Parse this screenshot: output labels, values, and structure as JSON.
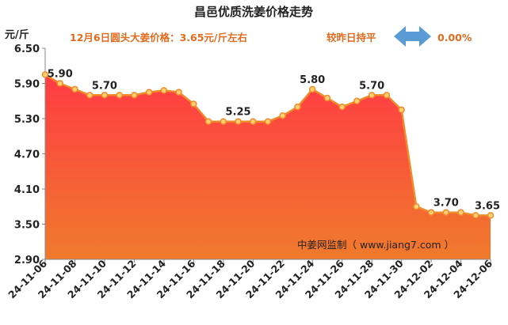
{
  "header": {
    "title": "昌邑优质洗姜价格走势",
    "unit": "元/斤",
    "price_note": "12月6日圆头大姜价格：3.65元/斤左右",
    "compare_label": "较昨日持平",
    "compare_value": "0.00%",
    "watermark": "中姜网监制（ www.jiang7.com ）"
  },
  "colors": {
    "area_top": "#ff3b44",
    "area_bottom": "#f07a2c",
    "line": "#f08a2c",
    "marker_fill": "#ffd070",
    "accent_text": "#e06b1e",
    "arrow": "#5b9bd5"
  },
  "chart_data": {
    "type": "area",
    "title": "昌邑优质洗姜价格走势",
    "ylabel": "元/斤",
    "ylim": [
      2.9,
      6.5
    ],
    "yticks": [
      "6.50",
      "5.90",
      "5.30",
      "4.70",
      "4.10",
      "3.50",
      "2.90"
    ],
    "x": [
      "24-11-06",
      "24-11-07",
      "24-11-08",
      "24-11-09",
      "24-11-10",
      "24-11-11",
      "24-11-12",
      "24-11-13",
      "24-11-14",
      "24-11-15",
      "24-11-16",
      "24-11-17",
      "24-11-18",
      "24-11-19",
      "24-11-20",
      "24-11-21",
      "24-11-22",
      "24-11-23",
      "24-11-24",
      "24-11-25",
      "24-11-26",
      "24-11-27",
      "24-11-28",
      "24-11-29",
      "24-11-30",
      "24-12-01",
      "24-12-02",
      "24-12-03",
      "24-12-04",
      "24-12-05",
      "24-12-06"
    ],
    "xtick_labels": [
      "24-11-06",
      "24-11-08",
      "24-11-10",
      "24-11-12",
      "24-11-14",
      "24-11-16",
      "24-11-18",
      "24-11-20",
      "24-11-22",
      "24-11-24",
      "24-11-26",
      "24-11-28",
      "24-11-30",
      "24-12-02",
      "24-12-04",
      "24-12-06"
    ],
    "values": [
      6.05,
      5.9,
      5.8,
      5.7,
      5.7,
      5.7,
      5.7,
      5.75,
      5.78,
      5.75,
      5.55,
      5.25,
      5.25,
      5.25,
      5.25,
      5.25,
      5.35,
      5.5,
      5.8,
      5.65,
      5.5,
      5.6,
      5.7,
      5.7,
      5.45,
      3.8,
      3.7,
      3.7,
      3.7,
      3.65,
      3.65
    ],
    "data_labels": [
      {
        "index": 1,
        "text": "5.90"
      },
      {
        "index": 4,
        "text": "5.70"
      },
      {
        "index": 13,
        "text": "5.25"
      },
      {
        "index": 18,
        "text": "5.80"
      },
      {
        "index": 22,
        "text": "5.70"
      },
      {
        "index": 27,
        "text": "3.70"
      },
      {
        "index": 30,
        "text": "3.65"
      }
    ],
    "grid": false
  }
}
